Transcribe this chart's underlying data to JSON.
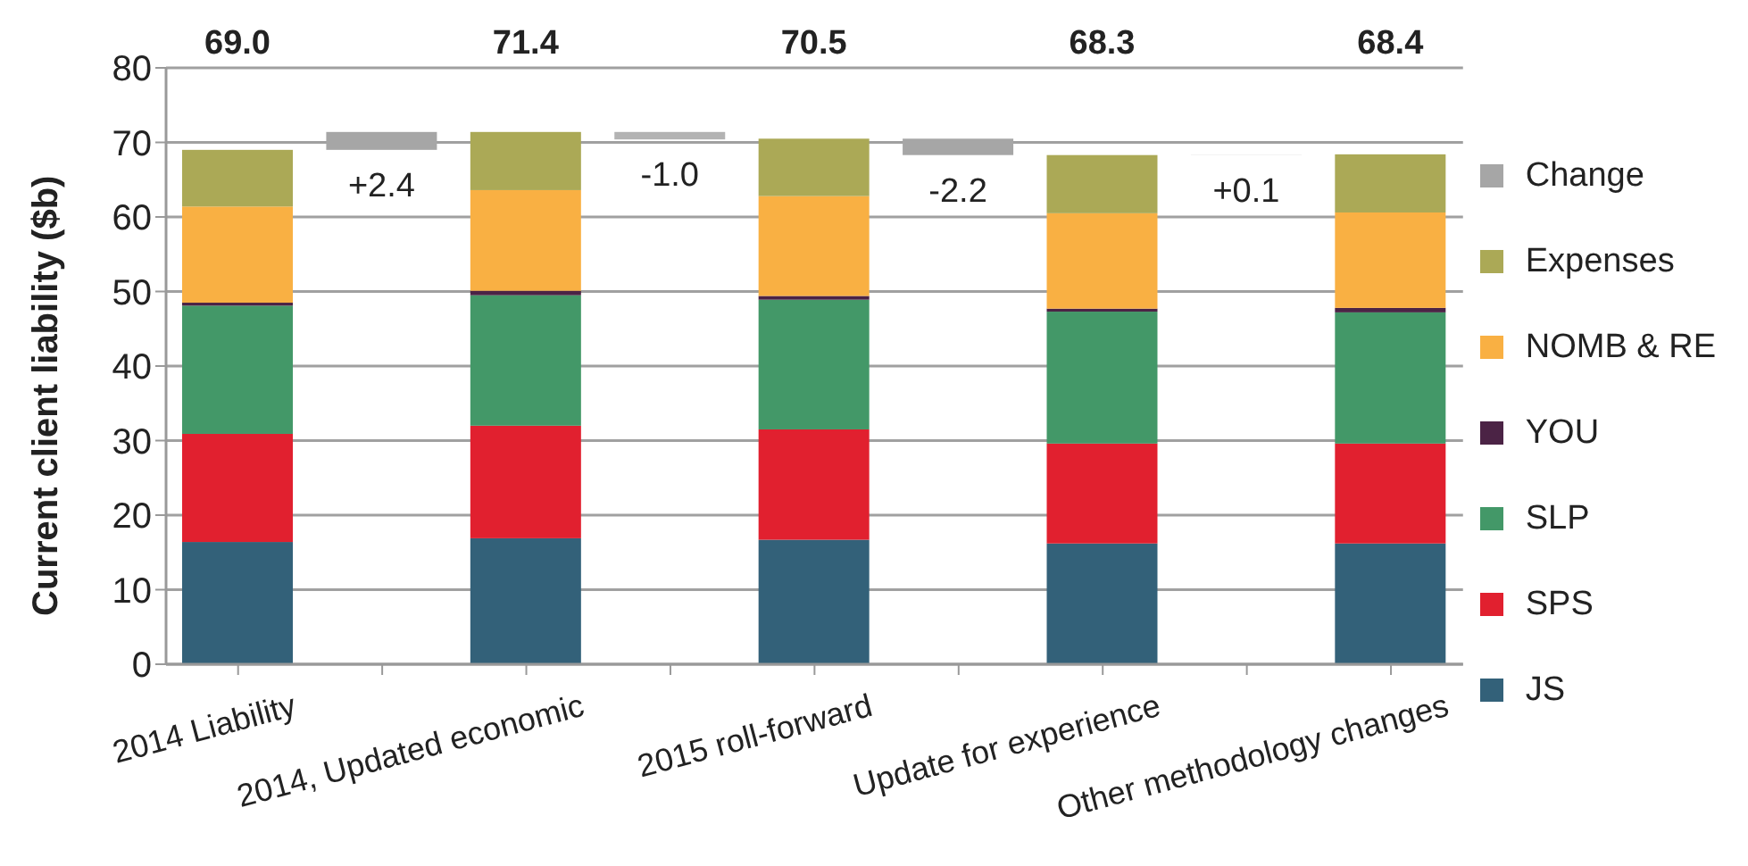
{
  "chart_data": {
    "type": "bar",
    "stacked": true,
    "ylabel": "Current client liability ($b)",
    "categories": [
      "2014 Liability",
      null,
      "2014, Updated economic",
      null,
      "2015 roll-forward",
      null,
      "Update for experience",
      null,
      "Other methodology changes"
    ],
    "series": [
      {
        "name": "JS",
        "color": "#336179",
        "values": [
          16.4,
          null,
          16.9,
          null,
          16.7,
          null,
          16.2,
          null,
          16.2
        ]
      },
      {
        "name": "SPS",
        "color": "#e1202f",
        "values": [
          14.5,
          null,
          15.1,
          null,
          14.8,
          null,
          13.4,
          null,
          13.4
        ]
      },
      {
        "name": "SLP",
        "color": "#439868",
        "values": [
          17.2,
          null,
          17.5,
          null,
          17.4,
          null,
          17.7,
          null,
          17.6
        ]
      },
      {
        "name": "YOU",
        "color": "#4b2345",
        "values": [
          0.4,
          null,
          0.6,
          null,
          0.5,
          null,
          0.4,
          null,
          0.6
        ]
      },
      {
        "name": "NOMB & RE",
        "color": "#f9b043",
        "values": [
          12.9,
          null,
          13.5,
          null,
          13.4,
          null,
          12.8,
          null,
          12.8
        ]
      },
      {
        "name": "Expenses",
        "color": "#aba956",
        "values": [
          7.6,
          null,
          7.8,
          null,
          7.7,
          null,
          7.8,
          null,
          7.8
        ]
      },
      {
        "name": "Change",
        "color": "#a6a6a6",
        "colors": [
          null,
          "#a6a6a6",
          null,
          "#b3b3b3",
          null,
          "#a6a6a6",
          null,
          "#eeeeee",
          null
        ],
        "values": [
          null,
          2.4,
          null,
          -1.0,
          null,
          -2.2,
          null,
          0.1,
          null
        ],
        "base": [
          null,
          69.0,
          null,
          71.4,
          null,
          70.5,
          null,
          68.3,
          null
        ],
        "value_labels": [
          null,
          "+2.4",
          null,
          "-1.0",
          null,
          "-2.2",
          null,
          "+0.1",
          null
        ]
      }
    ],
    "totals": [
      "69.0",
      null,
      "71.4",
      null,
      "70.5",
      null,
      "68.3",
      null,
      "68.4"
    ],
    "ylim": [
      0,
      80
    ],
    "yticks": [
      0,
      10,
      20,
      30,
      40,
      50,
      60,
      70,
      80
    ],
    "grid": "y",
    "legend": "right"
  }
}
